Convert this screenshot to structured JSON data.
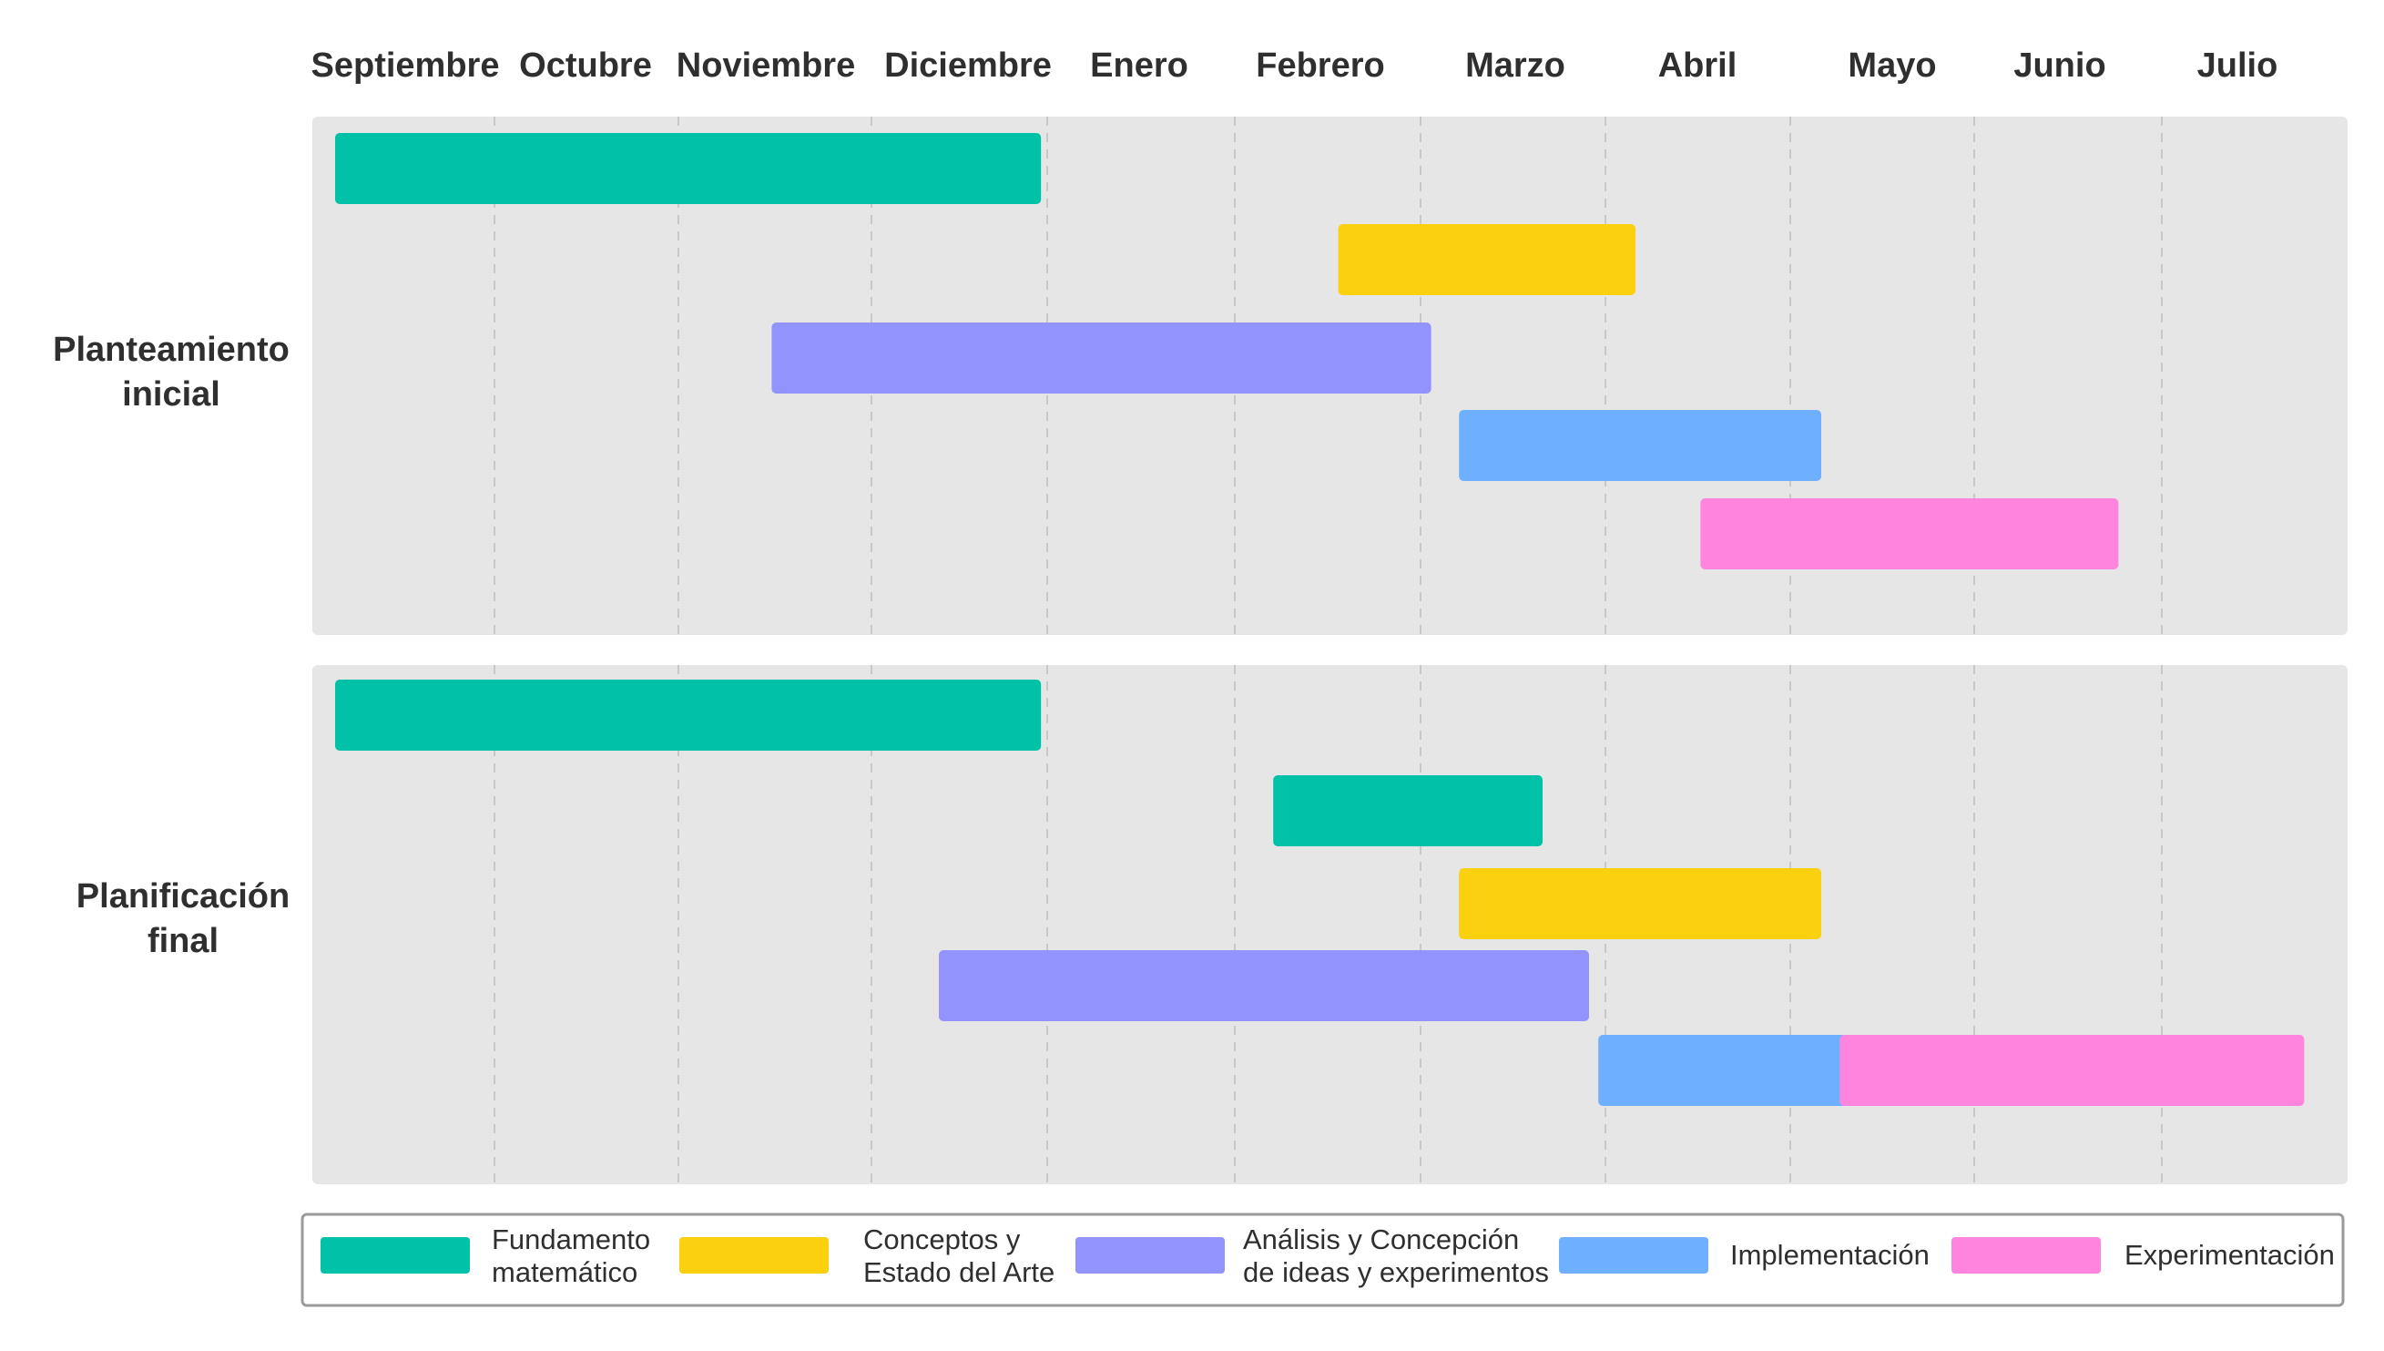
{
  "chart_data": {
    "type": "gantt",
    "months": [
      "Septiembre",
      "Octubre",
      "Noviembre",
      "Diciembre",
      "Enero",
      "Febrero",
      "Marzo",
      "Abril",
      "Mayo",
      "Junio",
      "Julio"
    ],
    "grid": true,
    "legend_position": "bottom",
    "categories": [
      {
        "key": "fundamento",
        "label_lines": [
          "Fundamento",
          "matemático"
        ],
        "color": "#00c2a8"
      },
      {
        "key": "conceptos",
        "label_lines": [
          "Conceptos y",
          "Estado del Arte"
        ],
        "color": "#fbd00e"
      },
      {
        "key": "analisis",
        "label_lines": [
          "Análisis y Concepción",
          "de ideas y experimentos"
        ],
        "color": "#9393fd"
      },
      {
        "key": "implementacion",
        "label_lines": [
          "Implementación"
        ],
        "color": "#6eb0ff"
      },
      {
        "key": "experimentacion",
        "label_lines": [
          "Experimentación"
        ],
        "color": "#ff84de"
      }
    ],
    "groups": [
      {
        "label_lines": [
          "Planteamiento",
          "inicial"
        ],
        "tasks": [
          {
            "category": "fundamento",
            "start": 0.0,
            "end": 3.8
          },
          {
            "category": "conceptos",
            "start": 5.4,
            "end": 7.0
          },
          {
            "category": "analisis",
            "start": 2.35,
            "end": 5.9
          },
          {
            "category": "implementacion",
            "start": 6.05,
            "end": 8.0
          },
          {
            "category": "experimentacion",
            "start": 7.35,
            "end": 9.6
          }
        ]
      },
      {
        "label_lines": [
          "Planificación",
          "final"
        ],
        "tasks": [
          {
            "category": "fundamento",
            "start": 0.0,
            "end": 3.8
          },
          {
            "category": "fundamento",
            "start": 5.05,
            "end": 6.5
          },
          {
            "category": "conceptos",
            "start": 6.05,
            "end": 8.0
          },
          {
            "category": "analisis",
            "start": 3.25,
            "end": 6.75
          },
          {
            "category": "implementacion",
            "start": 6.8,
            "end": 9.0
          },
          {
            "category": "experimentacion",
            "start": 8.1,
            "end": 10.6
          }
        ]
      }
    ]
  }
}
